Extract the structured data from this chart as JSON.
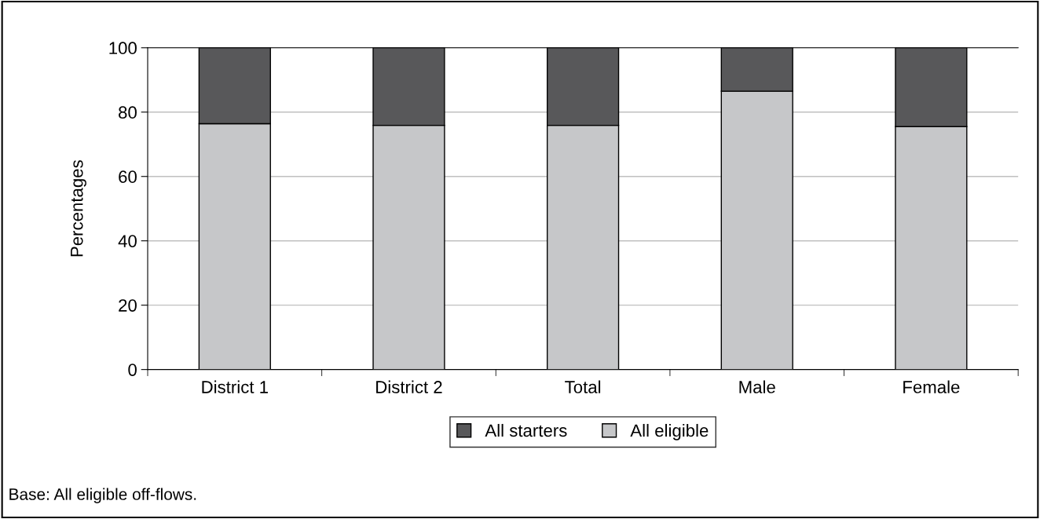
{
  "chart_data": {
    "type": "bar",
    "stacked": true,
    "ylabel": "Percentages",
    "categories": [
      "District 1",
      "District 2",
      "Total",
      "Male",
      "Female"
    ],
    "series": [
      {
        "name": "All eligible",
        "color": "#c6c7c9",
        "values": [
          76.4,
          75.9,
          75.9,
          86.5,
          75.5
        ]
      },
      {
        "name": "All starters",
        "color": "#58585a",
        "values": [
          23.6,
          24.1,
          24.1,
          13.5,
          24.5
        ]
      }
    ],
    "ylim": [
      0,
      100
    ],
    "yticks": [
      0,
      20,
      40,
      60,
      80,
      100
    ],
    "grid": "y",
    "legend": "bottom",
    "annotations": [
      "Base: All eligible off-flows."
    ]
  }
}
